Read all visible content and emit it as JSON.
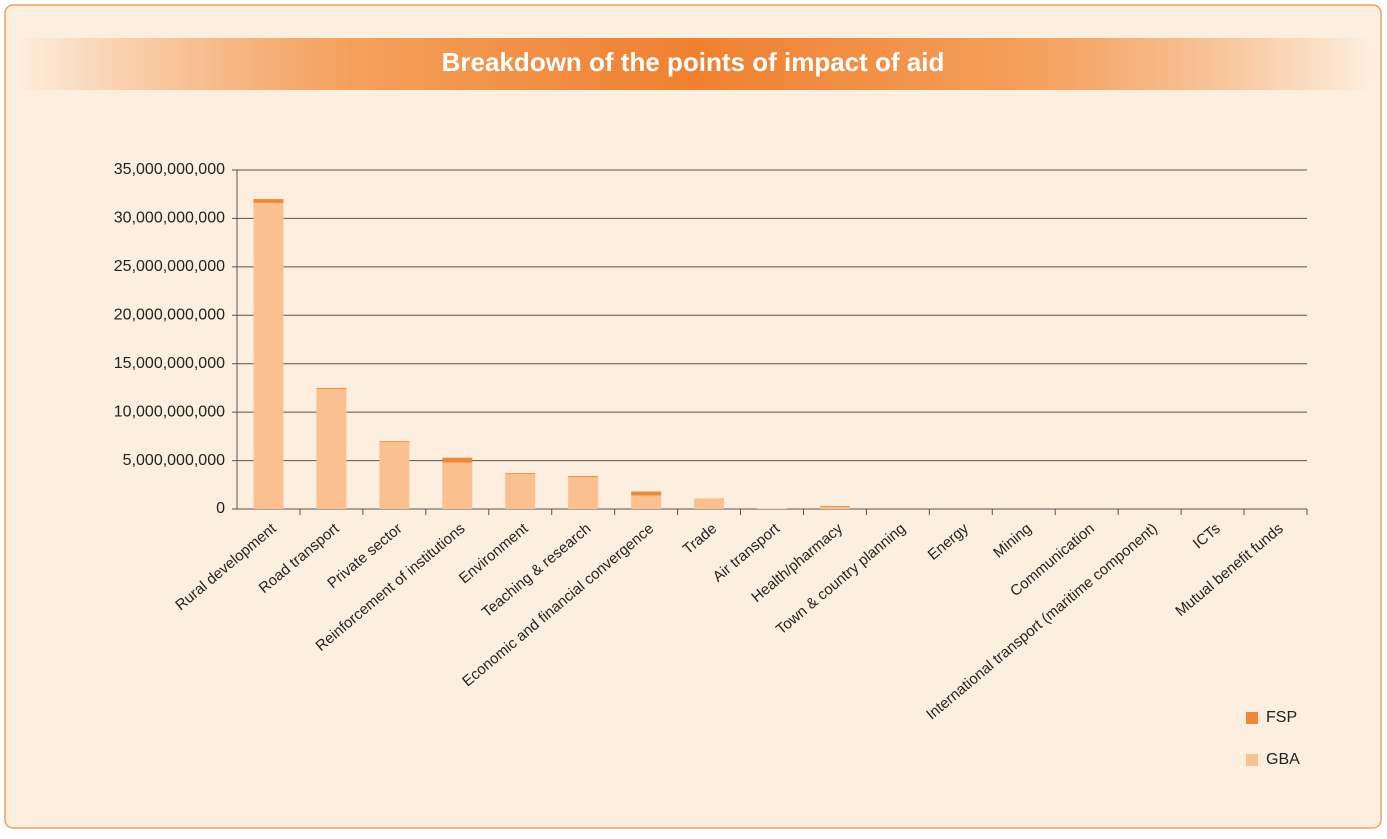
{
  "chart_data": {
    "type": "stacked_bar",
    "title": "Breakdown of the points of impact of aid",
    "categories": [
      "Rural development",
      "Road transport",
      "Private sector",
      "Reinforcement of institutions",
      "Environment",
      "Teaching & research",
      "Economic and financial convergence",
      "Trade",
      "Air transport",
      "Health/pharmacy",
      "Town & country planning",
      "Energy",
      "Mining",
      "Communication",
      "International transport (maritime component)",
      "ICTs",
      "Mutual benefit funds"
    ],
    "series": [
      {
        "name": "GBA",
        "color": "#fac090",
        "values": [
          31600000000,
          12400000000,
          6900000000,
          4800000000,
          3600000000,
          3300000000,
          1400000000,
          1100000000,
          50000000,
          200000000,
          0,
          0,
          0,
          0,
          0,
          0,
          0
        ]
      },
      {
        "name": "FSP",
        "color": "#f0883a",
        "values": [
          400000000,
          100000000,
          100000000,
          500000000,
          100000000,
          100000000,
          400000000,
          0,
          0,
          100000000,
          0,
          0,
          0,
          0,
          0,
          0,
          0
        ]
      }
    ],
    "ylim": [
      0,
      35000000000
    ],
    "yticks": [
      {
        "value": 0,
        "label": "0"
      },
      {
        "value": 5000000000,
        "label": "5,000,000,000"
      },
      {
        "value": 10000000000,
        "label": "10,000,000,000"
      },
      {
        "value": 15000000000,
        "label": "15,000,000,000"
      },
      {
        "value": 20000000000,
        "label": "20,000,000,000"
      },
      {
        "value": 25000000000,
        "label": "25,000,000,000"
      },
      {
        "value": 30000000000,
        "label": "30,000,000,000"
      },
      {
        "value": 35000000000,
        "label": "35,000,000,000"
      }
    ],
    "grid": true,
    "legend": "bottom-right"
  }
}
